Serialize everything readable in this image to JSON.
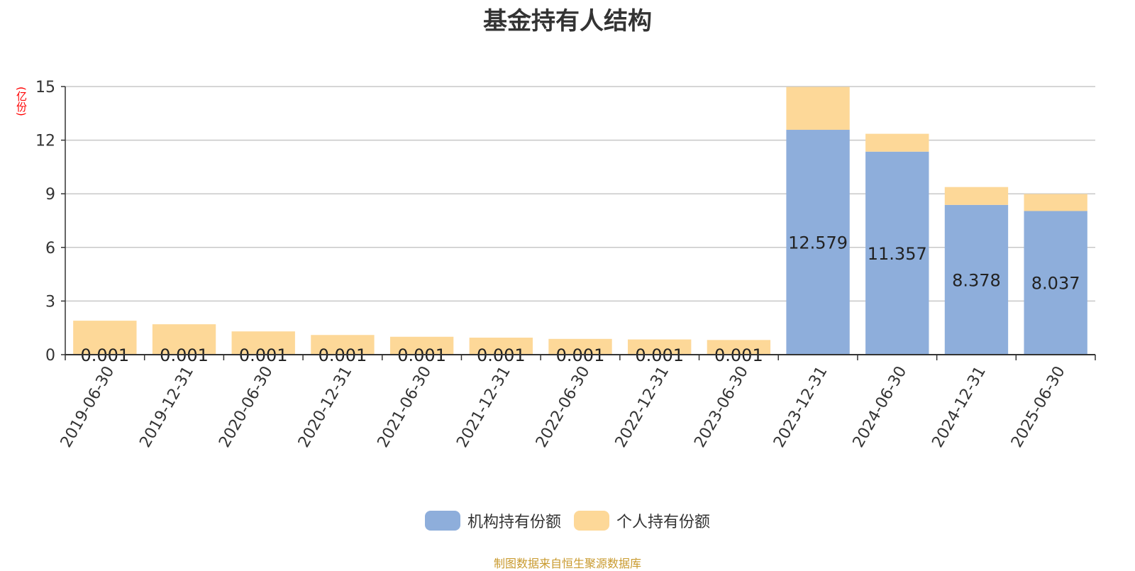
{
  "chart_data": {
    "type": "bar",
    "stacked": true,
    "title": "基金持有人结构",
    "ylabel": "(亿份)",
    "ylim": [
      0,
      15
    ],
    "yticks": [
      0,
      3,
      6,
      9,
      12,
      15
    ],
    "grid": true,
    "legend_position": "bottom",
    "categories": [
      "2019-06-30",
      "2019-12-31",
      "2020-06-30",
      "2020-12-31",
      "2021-06-30",
      "2021-12-31",
      "2022-06-30",
      "2022-12-31",
      "2023-06-30",
      "2023-12-31",
      "2024-06-30",
      "2024-12-31",
      "2025-06-30"
    ],
    "series": [
      {
        "name": "机构持有份额",
        "color": "#8eaedb",
        "values": [
          0.001,
          0.001,
          0.001,
          0.001,
          0.001,
          0.001,
          0.001,
          0.001,
          0.001,
          12.579,
          11.357,
          8.378,
          8.037
        ],
        "labels": [
          "0.001",
          "0.001",
          "0.001",
          "0.001",
          "0.001",
          "0.001",
          "0.001",
          "0.001",
          "0.001",
          "12.579",
          "11.357",
          "8.378",
          "8.037"
        ]
      },
      {
        "name": "个人持有份额",
        "color": "#fdd898",
        "values": [
          1.9,
          1.7,
          1.3,
          1.1,
          1.0,
          0.95,
          0.88,
          0.85,
          0.82,
          2.4,
          1.0,
          1.0,
          0.95
        ]
      }
    ]
  },
  "source": "制图数据来自恒生聚源数据库"
}
